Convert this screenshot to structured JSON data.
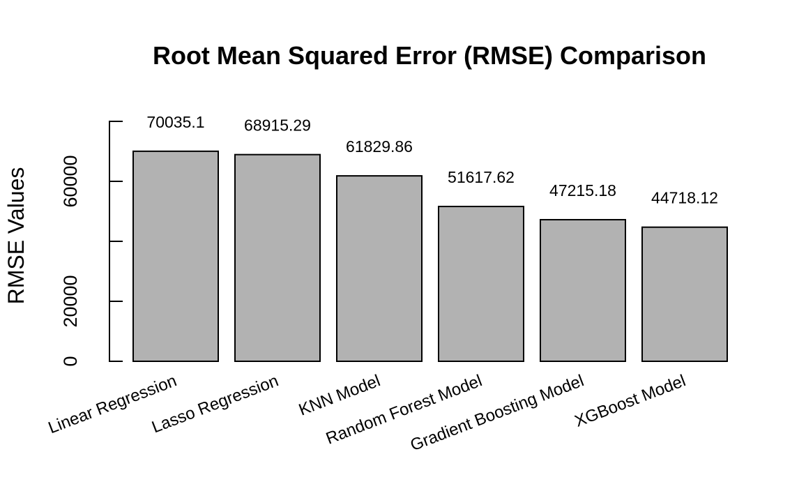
{
  "chart_data": {
    "type": "bar",
    "title": "Root Mean Squared Error (RMSE) Comparison",
    "xlabel": "",
    "ylabel": "RMSE Values",
    "categories": [
      "Linear Regression",
      "Lasso Regression",
      "KNN Model",
      "Random Forest Model",
      "Gradient Boosting Model",
      "XGBoost Model"
    ],
    "values": [
      70035.1,
      68915.29,
      61829.86,
      51617.62,
      47215.18,
      44718.12
    ],
    "value_labels": [
      "70035.1",
      "68915.29",
      "61829.86",
      "51617.62",
      "47215.18",
      "44718.12"
    ],
    "ylim": [
      0,
      80000
    ],
    "yticks": [
      0,
      20000,
      40000,
      60000,
      80000
    ],
    "ytick_labels": [
      "0",
      "20000",
      "",
      "60000",
      ""
    ],
    "bar_color": "#b2b2b2",
    "grid": false,
    "legend": "none"
  }
}
